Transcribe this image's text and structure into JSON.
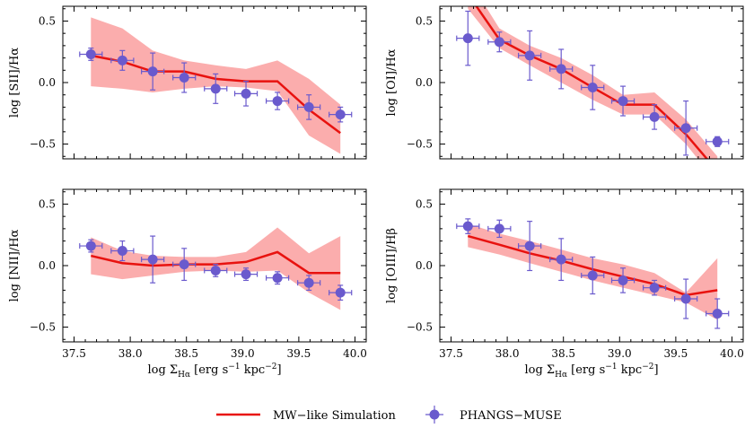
{
  "figure_title": "",
  "colors": {
    "sim_line": "#e8120f",
    "sim_band": "#fbadad",
    "obs": "#6a5acd"
  },
  "legend": {
    "sim_label": "MW−like Simulation",
    "obs_label": "PHANGS−MUSE"
  },
  "chart_data": [
    {
      "type": "line",
      "panel": "top-left",
      "ylabel": "log  [SII]/Hα",
      "xlabel": "",
      "xlim": [
        37.4,
        40.1
      ],
      "ylim": [
        -0.62,
        0.62
      ],
      "x_ticks": [
        37.5,
        38.0,
        38.5,
        39.0,
        39.5,
        40.0
      ],
      "y_ticks": [
        -0.5,
        0.0,
        0.5
      ],
      "x_tick_labels": [
        "",
        "",
        "",
        "",
        "",
        ""
      ],
      "y_tick_labels": [
        "−0.5",
        "0.0",
        "0.5"
      ],
      "sim": {
        "x": [
          37.65,
          37.93,
          38.2,
          38.48,
          38.76,
          39.03,
          39.31,
          39.59,
          39.87
        ],
        "y": [
          0.22,
          0.17,
          0.09,
          0.09,
          0.03,
          0.01,
          0.01,
          -0.22,
          -0.41
        ],
        "lo": [
          -0.03,
          -0.05,
          -0.08,
          -0.05,
          -0.03,
          -0.04,
          -0.07,
          -0.43,
          -0.58
        ],
        "hi": [
          0.53,
          0.44,
          0.26,
          0.18,
          0.14,
          0.11,
          0.18,
          0.03,
          -0.18
        ]
      },
      "obs": {
        "x": [
          37.65,
          37.93,
          38.2,
          38.48,
          38.76,
          39.03,
          39.31,
          39.59,
          39.87
        ],
        "y": [
          0.23,
          0.18,
          0.09,
          0.04,
          -0.05,
          -0.09,
          -0.15,
          -0.2,
          -0.26
        ],
        "yerr": [
          0.05,
          0.08,
          0.15,
          0.12,
          0.12,
          0.1,
          0.07,
          0.1,
          0.06
        ],
        "xerr": [
          0.1,
          0.1,
          0.1,
          0.1,
          0.1,
          0.1,
          0.1,
          0.1,
          0.1
        ]
      }
    },
    {
      "type": "line",
      "panel": "top-right",
      "ylabel": "log  [OI]/Hα",
      "xlabel": "",
      "xlim": [
        37.4,
        40.1
      ],
      "ylim": [
        -0.62,
        0.62
      ],
      "x_ticks": [
        37.5,
        38.0,
        38.5,
        39.0,
        39.5,
        40.0
      ],
      "y_ticks": [
        -0.5,
        0.0,
        0.5
      ],
      "x_tick_labels": [
        "",
        "",
        "",
        "",
        "",
        ""
      ],
      "y_tick_labels": [
        "−0.5",
        "0.0",
        "0.5"
      ],
      "sim": {
        "x": [
          37.65,
          37.93,
          38.2,
          38.48,
          38.76,
          39.03,
          39.31,
          39.59,
          39.87
        ],
        "y": [
          0.72,
          0.35,
          0.22,
          0.11,
          -0.04,
          -0.18,
          -0.18,
          -0.42,
          -0.72
        ],
        "lo": [
          0.6,
          0.28,
          0.14,
          0.0,
          -0.14,
          -0.26,
          -0.26,
          -0.5,
          -0.82
        ],
        "hi": [
          0.85,
          0.44,
          0.3,
          0.2,
          0.06,
          -0.1,
          -0.08,
          -0.3,
          -0.6
        ]
      },
      "obs": {
        "x": [
          37.65,
          37.93,
          38.2,
          38.48,
          38.76,
          39.03,
          39.31,
          39.59,
          39.87
        ],
        "y": [
          0.36,
          0.33,
          0.22,
          0.11,
          -0.04,
          -0.15,
          -0.28,
          -0.37,
          -0.48
        ],
        "yerr": [
          0.22,
          0.08,
          0.2,
          0.16,
          0.18,
          0.12,
          0.1,
          0.22,
          0.04
        ],
        "xerr": [
          0.1,
          0.1,
          0.1,
          0.1,
          0.1,
          0.1,
          0.1,
          0.1,
          0.1
        ]
      }
    },
    {
      "type": "line",
      "panel": "bottom-left",
      "ylabel": "log  [NII]/Hα",
      "xlabel": "log  Σ",
      "xlabel_sub": "Hα",
      "xlabel_rest": " [erg s",
      "xlabel_sup1": "−1",
      "xlabel_mid": " kpc",
      "xlabel_sup2": "−2",
      "xlabel_end": "]",
      "xlim": [
        37.4,
        40.1
      ],
      "ylim": [
        -0.62,
        0.62
      ],
      "x_ticks": [
        37.5,
        38.0,
        38.5,
        39.0,
        39.5,
        40.0
      ],
      "y_ticks": [
        -0.5,
        0.0,
        0.5
      ],
      "x_tick_labels": [
        "37.5",
        "38.0",
        "38.5",
        "39.0",
        "39.5",
        "40.0"
      ],
      "y_tick_labels": [
        "−0.5",
        "0.0",
        "0.5"
      ],
      "sim": {
        "x": [
          37.65,
          37.93,
          38.2,
          38.48,
          38.76,
          39.03,
          39.31,
          39.59,
          39.87
        ],
        "y": [
          0.08,
          0.02,
          0.0,
          0.01,
          0.01,
          0.03,
          0.11,
          -0.06,
          -0.06
        ],
        "lo": [
          -0.07,
          -0.11,
          -0.08,
          -0.05,
          -0.04,
          -0.05,
          -0.04,
          -0.22,
          -0.36
        ],
        "hi": [
          0.23,
          0.12,
          0.08,
          0.07,
          0.07,
          0.11,
          0.31,
          0.1,
          0.24
        ]
      },
      "obs": {
        "x": [
          37.65,
          37.93,
          38.2,
          38.48,
          38.76,
          39.03,
          39.31,
          39.59,
          39.87
        ],
        "y": [
          0.16,
          0.12,
          0.05,
          0.01,
          -0.04,
          -0.07,
          -0.1,
          -0.14,
          -0.22
        ],
        "yerr": [
          0.05,
          0.08,
          0.19,
          0.13,
          0.05,
          0.05,
          0.05,
          0.06,
          0.06
        ],
        "xerr": [
          0.1,
          0.1,
          0.1,
          0.1,
          0.1,
          0.1,
          0.1,
          0.1,
          0.1
        ]
      }
    },
    {
      "type": "line",
      "panel": "bottom-right",
      "ylabel": "log  [OIII]/Hβ",
      "xlabel": "log  Σ",
      "xlabel_sub": "Hα",
      "xlabel_rest": " [erg s",
      "xlabel_sup1": "−1",
      "xlabel_mid": " kpc",
      "xlabel_sup2": "−2",
      "xlabel_end": "]",
      "xlim": [
        37.4,
        40.1
      ],
      "ylim": [
        -0.62,
        0.62
      ],
      "x_ticks": [
        37.5,
        38.0,
        38.5,
        39.0,
        39.5,
        40.0
      ],
      "y_ticks": [
        -0.5,
        0.0,
        0.5
      ],
      "x_tick_labels": [
        "37.5",
        "38.0",
        "38.5",
        "39.0",
        "39.5",
        "40.0"
      ],
      "y_tick_labels": [
        "−0.5",
        "0.0",
        "0.5"
      ],
      "sim": {
        "x": [
          37.65,
          37.93,
          38.2,
          38.48,
          38.76,
          39.03,
          39.31,
          39.59,
          39.87
        ],
        "y": [
          0.24,
          0.17,
          0.1,
          0.04,
          -0.03,
          -0.09,
          -0.15,
          -0.24,
          -0.2
        ],
        "lo": [
          0.15,
          0.09,
          0.02,
          -0.05,
          -0.12,
          -0.18,
          -0.24,
          -0.3,
          -0.44
        ],
        "hi": [
          0.34,
          0.26,
          0.2,
          0.13,
          0.06,
          0.01,
          -0.06,
          -0.22,
          0.06
        ]
      },
      "obs": {
        "x": [
          37.65,
          37.93,
          38.2,
          38.48,
          38.76,
          39.03,
          39.31,
          39.59,
          39.87
        ],
        "y": [
          0.32,
          0.3,
          0.16,
          0.05,
          -0.08,
          -0.12,
          -0.18,
          -0.27,
          -0.39
        ],
        "yerr": [
          0.06,
          0.07,
          0.2,
          0.17,
          0.15,
          0.1,
          0.06,
          0.16,
          0.12
        ],
        "xerr": [
          0.1,
          0.1,
          0.1,
          0.1,
          0.1,
          0.1,
          0.1,
          0.1,
          0.1
        ]
      }
    }
  ]
}
